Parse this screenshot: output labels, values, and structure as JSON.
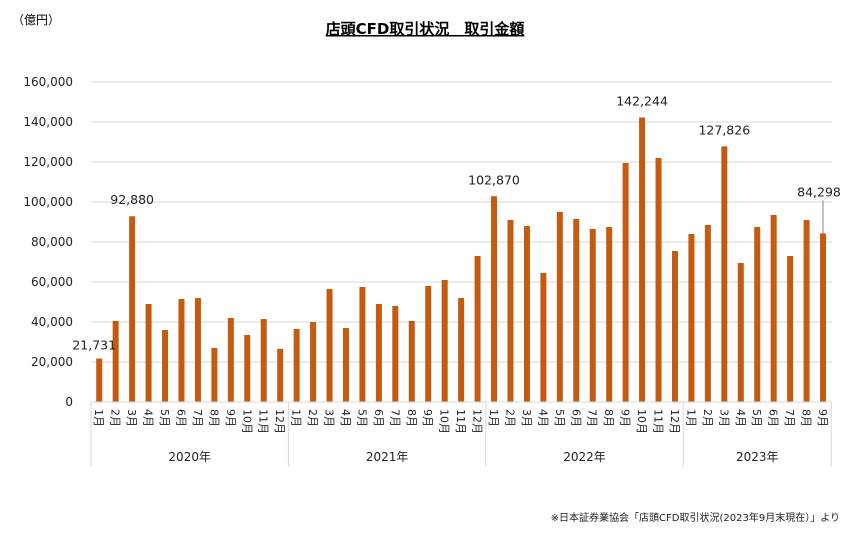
{
  "chart_data": {
    "type": "bar",
    "title": "店頭CFD取引状況　取引金額",
    "unit_label": "（億円）",
    "source_note": "※日本証券業協会「店頭CFD取引状況(2023年9月末現在）」より",
    "ylim": [
      0,
      160000
    ],
    "yticks": [
      "0",
      "20,000",
      "40,000",
      "60,000",
      "80,000",
      "100,000",
      "120,000",
      "140,000",
      "160,000"
    ],
    "grid": true,
    "legend": "none",
    "bar_color": "#C55A11",
    "grid_color": "#D9D9D9",
    "months": [
      "1月",
      "2月",
      "3月",
      "4月",
      "5月",
      "6月",
      "7月",
      "8月",
      "9月",
      "10月",
      "11月",
      "12月"
    ],
    "years": [
      {
        "label": "2020年",
        "values": [
          21731,
          40500,
          92880,
          49000,
          36000,
          51500,
          52000,
          27000,
          42000,
          33500,
          41500,
          26500
        ]
      },
      {
        "label": "2021年",
        "values": [
          36500,
          40000,
          56500,
          37000,
          57500,
          49000,
          48000,
          40500,
          58000,
          61000,
          52000,
          73000
        ]
      },
      {
        "label": "2022年",
        "values": [
          102870,
          91000,
          88000,
          64500,
          95000,
          91500,
          86500,
          87500,
          119500,
          142244,
          122000,
          75500
        ]
      },
      {
        "label": "2023年",
        "values": [
          84000,
          88500,
          127826,
          69500,
          87500,
          93500,
          73000,
          91000,
          84298
        ]
      }
    ],
    "data_labels": [
      {
        "year": 0,
        "month": 0,
        "text": "21,731"
      },
      {
        "year": 0,
        "month": 2,
        "text": "92,880"
      },
      {
        "year": 2,
        "month": 0,
        "text": "102,870"
      },
      {
        "year": 2,
        "month": 9,
        "text": "142,244"
      },
      {
        "year": 3,
        "month": 2,
        "text": "127,826"
      },
      {
        "year": 3,
        "month": 8,
        "text": "84,298"
      }
    ]
  }
}
